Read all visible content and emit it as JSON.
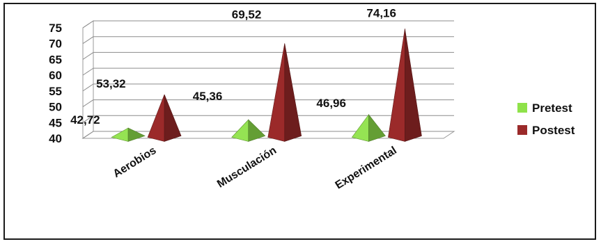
{
  "chart_data": {
    "type": "bar",
    "style": "3d-pyramid",
    "categories": [
      "Aerobios",
      "Musculación",
      "Experimental"
    ],
    "series": [
      {
        "name": "Pretest",
        "values": [
          42.72,
          45.36,
          46.96
        ],
        "labels": [
          "42,72",
          "45,36",
          "46,96"
        ],
        "color": "#8fe24a"
      },
      {
        "name": "Postest",
        "values": [
          53.32,
          69.52,
          74.16
        ],
        "labels": [
          "53,32",
          "69,52",
          "74,16"
        ],
        "color": "#9b2a2a"
      }
    ],
    "yticks": [
      "40",
      "45",
      "50",
      "55",
      "60",
      "65",
      "70",
      "75"
    ],
    "ylim": [
      40,
      75
    ],
    "grid": true,
    "legend": "right"
  }
}
